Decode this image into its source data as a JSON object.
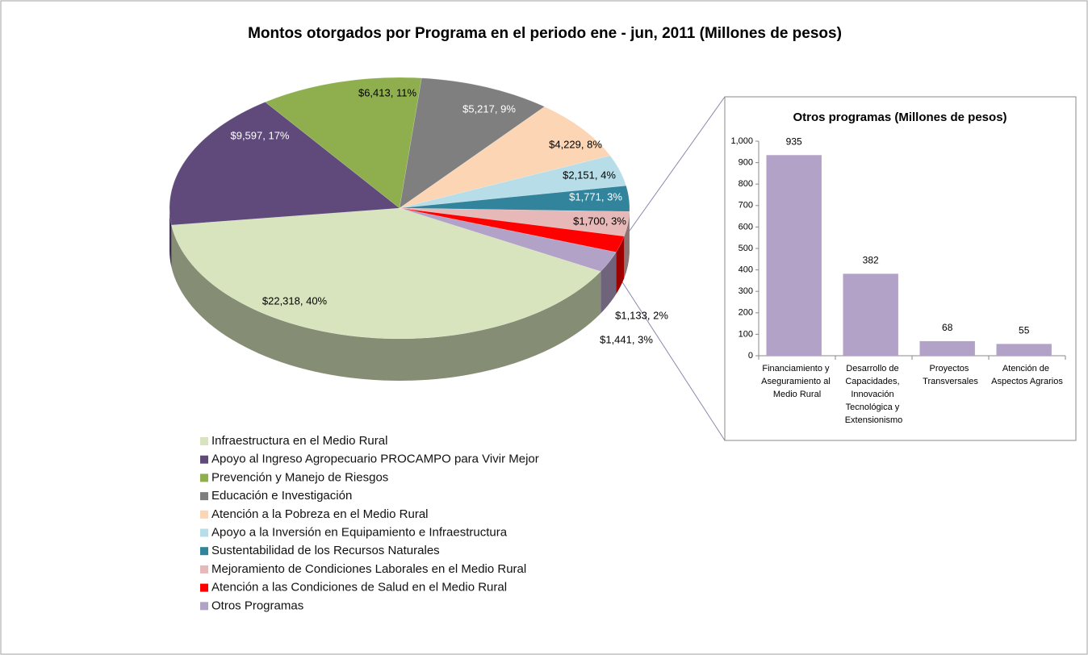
{
  "chart_data": [
    {
      "type": "pie",
      "title": "Montos otorgados por Programa en el periodo ene - jun, 2011 (Millones de pesos)",
      "categories": [
        "Infraestructura en el Medio Rural",
        "Apoyo al Ingreso Agropecuario PROCAMPO para Vivir Mejor",
        "Prevención y Manejo de Riesgos",
        "Educación e Investigación",
        "Atención a la Pobreza en el Medio Rural",
        "Apoyo a la Inversión en Equipamiento e Infraestructura",
        "Sustentabilidad de los Recursos Naturales",
        "Mejoramiento de Condiciones Laborales en el Medio Rural",
        "Atención a las Condiciones de Salud en el Medio Rural",
        "Otros Programas"
      ],
      "values": [
        22318,
        9597,
        6413,
        5217,
        4229,
        2151,
        1771,
        1700,
        1133,
        1441
      ],
      "value_labels": [
        "$22,318, 40%",
        "$9,597, 17%",
        "$6,413, 11%",
        "$5,217, 9%",
        "$4,229, 8%",
        "$2,151, 4%",
        "$1,771, 3%",
        "$1,700, 3%",
        "$1,133, 2%",
        "$1,441, 3%"
      ],
      "colors": [
        "#d7e4bd",
        "#604a7b",
        "#8faf4f",
        "#7f7f7f",
        "#fcd5b5",
        "#b7dee8",
        "#31849b",
        "#e6b9b8",
        "#ff0000",
        "#b3a2c7"
      ],
      "legend": "bottom-left"
    },
    {
      "type": "bar",
      "title": "Otros programas (Millones de pesos)",
      "categories": [
        "Financiamiento y Aseguramiento al Medio Rural",
        "Desarrollo de Capacidades, Innovación Tecnológica y Extensionismo",
        "Proyectos Transversales",
        "Atención de Aspectos Agrarios"
      ],
      "values": [
        935,
        382,
        68,
        55
      ],
      "color": "#b3a2c7",
      "ylim": [
        0,
        1000
      ],
      "yticks": [
        0,
        100,
        200,
        300,
        400,
        500,
        600,
        700,
        800,
        900,
        {
          "value": 1000,
          "label": "1,000"
        }
      ]
    }
  ]
}
